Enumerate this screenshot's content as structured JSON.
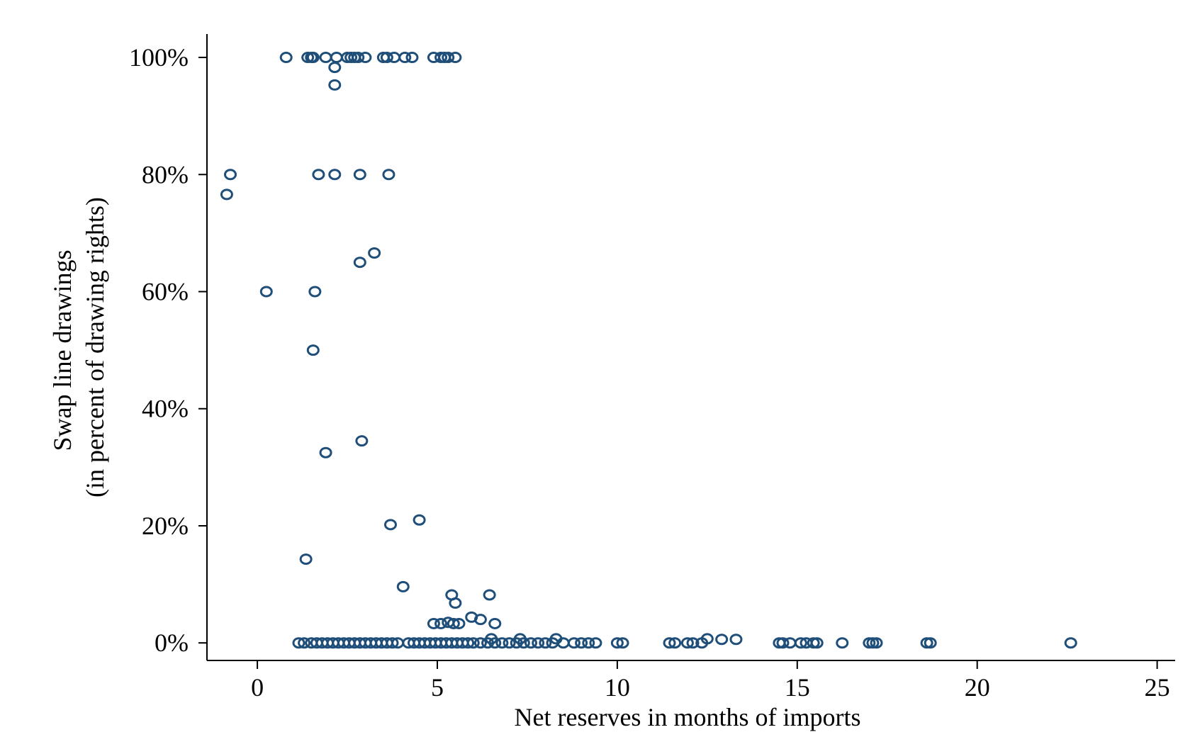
{
  "chart_data": {
    "type": "scatter",
    "title": "",
    "xlabel": "Net reserves in months of imports",
    "ylabel": [
      "Swap line drawings",
      "(in percent of drawing rights)"
    ],
    "xlim": [
      -1.4,
      25.5
    ],
    "ylim": [
      -3,
      104
    ],
    "xticks": [
      0,
      5,
      10,
      15,
      20,
      25
    ],
    "yticks": [
      0,
      20,
      40,
      60,
      80,
      100
    ],
    "ytick_suffix": "%",
    "grid": false,
    "legend": "none",
    "marker": "hollow-circle",
    "marker_color": "#1f4e79",
    "series": [
      {
        "points": [
          [
            0.8,
            100
          ],
          [
            1.4,
            100
          ],
          [
            1.5,
            100
          ],
          [
            1.55,
            100
          ],
          [
            1.9,
            100
          ],
          [
            2.2,
            100
          ],
          [
            2.5,
            100
          ],
          [
            2.6,
            100
          ],
          [
            2.7,
            100
          ],
          [
            2.8,
            100
          ],
          [
            3.0,
            100
          ],
          [
            3.5,
            100
          ],
          [
            3.6,
            100
          ],
          [
            3.8,
            100
          ],
          [
            4.1,
            100
          ],
          [
            4.3,
            100
          ],
          [
            4.9,
            100
          ],
          [
            5.1,
            100
          ],
          [
            5.2,
            100
          ],
          [
            5.3,
            100
          ],
          [
            5.5,
            100
          ],
          [
            2.15,
            98.3
          ],
          [
            2.15,
            95.3
          ],
          [
            -0.75,
            80
          ],
          [
            1.7,
            80
          ],
          [
            2.15,
            80
          ],
          [
            2.85,
            80
          ],
          [
            3.65,
            80
          ],
          [
            -0.85,
            76.6
          ],
          [
            3.25,
            66.6
          ],
          [
            2.85,
            65
          ],
          [
            0.25,
            60
          ],
          [
            1.6,
            60
          ],
          [
            1.55,
            50
          ],
          [
            2.9,
            34.5
          ],
          [
            1.9,
            32.5
          ],
          [
            4.5,
            21
          ],
          [
            3.7,
            20.2
          ],
          [
            1.35,
            14.3
          ],
          [
            4.05,
            9.6
          ],
          [
            5.4,
            8.2
          ],
          [
            6.45,
            8.2
          ],
          [
            5.5,
            6.8
          ],
          [
            5.95,
            4.4
          ],
          [
            6.2,
            4.0
          ],
          [
            4.9,
            3.3
          ],
          [
            5.1,
            3.3
          ],
          [
            5.3,
            3.5
          ],
          [
            5.45,
            3.3
          ],
          [
            5.6,
            3.3
          ],
          [
            6.6,
            3.3
          ],
          [
            6.5,
            0.7
          ],
          [
            7.3,
            0.7
          ],
          [
            8.3,
            0.7
          ],
          [
            12.5,
            0.7
          ],
          [
            12.9,
            0.6
          ],
          [
            13.3,
            0.6
          ],
          [
            1.15,
            0
          ],
          [
            1.3,
            0
          ],
          [
            1.5,
            0
          ],
          [
            1.65,
            0
          ],
          [
            1.8,
            0
          ],
          [
            1.95,
            0
          ],
          [
            2.1,
            0
          ],
          [
            2.25,
            0
          ],
          [
            2.4,
            0
          ],
          [
            2.55,
            0
          ],
          [
            2.7,
            0
          ],
          [
            2.85,
            0
          ],
          [
            3.0,
            0
          ],
          [
            3.15,
            0
          ],
          [
            3.3,
            0
          ],
          [
            3.45,
            0
          ],
          [
            3.6,
            0
          ],
          [
            3.75,
            0
          ],
          [
            3.9,
            0
          ],
          [
            4.2,
            0
          ],
          [
            4.35,
            0
          ],
          [
            4.5,
            0
          ],
          [
            4.65,
            0
          ],
          [
            4.8,
            0
          ],
          [
            4.95,
            0
          ],
          [
            5.1,
            0
          ],
          [
            5.25,
            0
          ],
          [
            5.4,
            0
          ],
          [
            5.55,
            0
          ],
          [
            5.7,
            0
          ],
          [
            5.85,
            0
          ],
          [
            6.0,
            0
          ],
          [
            6.2,
            0
          ],
          [
            6.4,
            0
          ],
          [
            6.6,
            0
          ],
          [
            6.8,
            0
          ],
          [
            7.0,
            0
          ],
          [
            7.2,
            0
          ],
          [
            7.4,
            0
          ],
          [
            7.6,
            0
          ],
          [
            7.8,
            0
          ],
          [
            8.0,
            0
          ],
          [
            8.2,
            0
          ],
          [
            8.5,
            0
          ],
          [
            8.8,
            0
          ],
          [
            9.0,
            0
          ],
          [
            9.2,
            0
          ],
          [
            9.4,
            0
          ],
          [
            10.0,
            0
          ],
          [
            10.15,
            0
          ],
          [
            11.45,
            0
          ],
          [
            11.6,
            0
          ],
          [
            11.95,
            0
          ],
          [
            12.1,
            0
          ],
          [
            12.35,
            0
          ],
          [
            14.5,
            0
          ],
          [
            14.6,
            0
          ],
          [
            14.8,
            0
          ],
          [
            15.1,
            0
          ],
          [
            15.25,
            0
          ],
          [
            15.45,
            0
          ],
          [
            15.55,
            0
          ],
          [
            16.25,
            0
          ],
          [
            17.0,
            0
          ],
          [
            17.1,
            0
          ],
          [
            17.2,
            0
          ],
          [
            18.6,
            0
          ],
          [
            18.7,
            0
          ],
          [
            22.6,
            0
          ]
        ]
      }
    ]
  }
}
